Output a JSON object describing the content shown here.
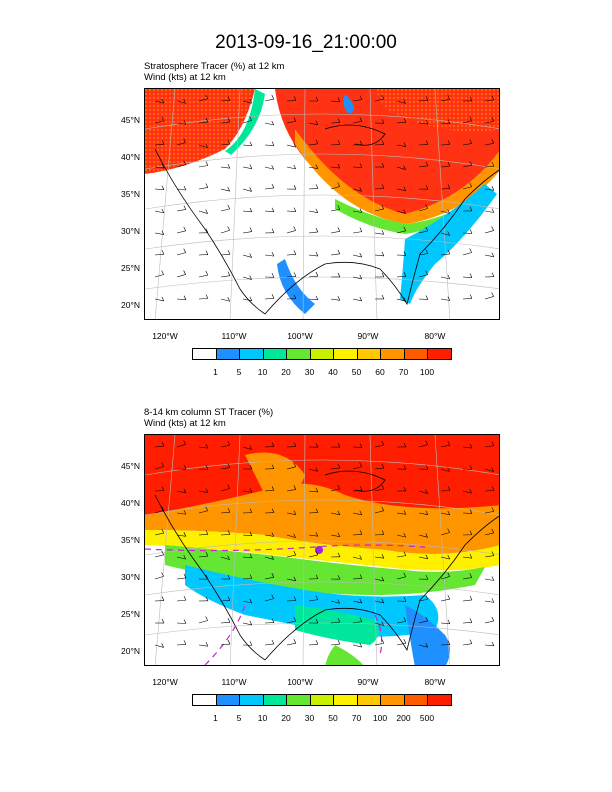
{
  "title": "2013-09-16_21:00:00",
  "panels": [
    {
      "subtitle1": "Stratosphere Tracer   (%)     at   12 km",
      "subtitle2": "Wind   (kts)     at   12 km",
      "lat_labels": [
        "45°N",
        "40°N",
        "35°N",
        "30°N",
        "25°N",
        "20°N"
      ],
      "lon_labels": [
        "120°W",
        "110°W",
        "100°W",
        "90°W",
        "80°W"
      ],
      "colorbar_labels": [
        "1",
        "5",
        "10",
        "20",
        "30",
        "40",
        "50",
        "60",
        "70",
        "100"
      ]
    },
    {
      "subtitle1": "8-14 km column ST Tracer   (%)",
      "subtitle2": "Wind   (kts)     at   12 km",
      "lat_labels": [
        "45°N",
        "40°N",
        "35°N",
        "30°N",
        "25°N",
        "20°N"
      ],
      "lon_labels": [
        "120°W",
        "110°W",
        "100°W",
        "90°W",
        "80°W"
      ],
      "colorbar_labels": [
        "1",
        "5",
        "10",
        "20",
        "30",
        "50",
        "70",
        "100",
        "200",
        "500"
      ]
    }
  ],
  "colors": [
    "#ffffff",
    "#1e90ff",
    "#00c8ff",
    "#00e69a",
    "#64e632",
    "#c8f000",
    "#fff000",
    "#ffc800",
    "#ff9600",
    "#ff5a00",
    "#ff1e00"
  ],
  "chart_data": [
    {
      "type": "heatmap",
      "title": "Stratosphere Tracer (%) at 12 km",
      "xlabel": "",
      "ylabel": "",
      "x_ticks": [
        "120°W",
        "110°W",
        "100°W",
        "90°W",
        "80°W"
      ],
      "y_ticks": [
        "45°N",
        "40°N",
        "35°N",
        "30°N",
        "25°N",
        "20°N"
      ],
      "color_levels": [
        1,
        5,
        10,
        20,
        30,
        40,
        50,
        60,
        70,
        100
      ]
    },
    {
      "type": "heatmap",
      "title": "8-14 km column ST Tracer (%)",
      "xlabel": "",
      "ylabel": "",
      "x_ticks": [
        "120°W",
        "110°W",
        "100°W",
        "90°W",
        "80°W"
      ],
      "y_ticks": [
        "45°N",
        "40°N",
        "35°N",
        "30°N",
        "25°N",
        "20°N"
      ],
      "color_levels": [
        1,
        5,
        10,
        20,
        30,
        50,
        70,
        100,
        200,
        500
      ]
    }
  ]
}
